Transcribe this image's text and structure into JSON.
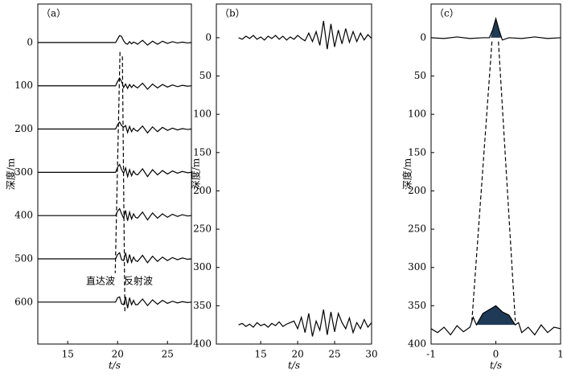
{
  "chart_data": [
    {
      "type": "line",
      "panel_label": "（a）",
      "xlabel": "t/s",
      "ylabel": "深度/m",
      "xlim": [
        12,
        27.4
      ],
      "xticks": [
        15,
        20,
        25
      ],
      "ylim": [
        -89,
        697
      ],
      "y_inverted": true,
      "yticks": [
        0,
        100,
        200,
        300,
        400,
        500,
        600
      ],
      "ytick_marks": false,
      "series": [
        {
          "color": "#000000",
          "x": [
            12,
            19.8,
            20,
            20.2,
            20.4,
            20.6,
            20.8,
            21,
            21.2,
            21.4,
            21.6,
            21.8,
            22,
            22.5,
            23,
            23.5,
            24,
            24.5,
            25,
            25.5,
            26,
            26.5,
            27,
            27.4
          ],
          "values": [
            0,
            0,
            -8,
            -16,
            -14,
            -4,
            2,
            4,
            -2,
            3,
            -1,
            1,
            4,
            -5,
            6,
            -3,
            4,
            -3,
            2,
            -2,
            1,
            -1,
            1,
            0
          ]
        },
        {
          "color": "#000000",
          "x": [
            12,
            19.8,
            20,
            20.2,
            20.4,
            20.6,
            20.8,
            21,
            21.2,
            21.4,
            21.6,
            21.8,
            22,
            22.5,
            23,
            23.5,
            24,
            24.5,
            25,
            25.5,
            26,
            26.5,
            27,
            27.4
          ],
          "values": [
            100,
            100,
            90,
            82,
            90,
            104,
            96,
            106,
            97,
            104,
            98,
            102,
            105,
            94,
            108,
            96,
            105,
            97,
            103,
            98,
            102,
            99,
            101,
            100
          ]
        },
        {
          "color": "#000000",
          "x": [
            12,
            19.8,
            20,
            20.2,
            20.4,
            20.6,
            20.8,
            21,
            21.2,
            21.4,
            21.6,
            21.8,
            22,
            22.5,
            23,
            23.5,
            24,
            24.5,
            25,
            25.5,
            26,
            26.5,
            27,
            27.4
          ],
          "values": [
            200,
            200,
            190,
            184,
            192,
            196,
            192,
            208,
            194,
            206,
            198,
            203,
            205,
            193,
            209,
            195,
            206,
            196,
            203,
            198,
            202,
            199,
            201,
            200
          ]
        },
        {
          "color": "#000000",
          "x": [
            12,
            19.8,
            20,
            20.2,
            20.4,
            20.6,
            20.8,
            21,
            21.2,
            21.4,
            21.6,
            21.8,
            22,
            22.5,
            23,
            23.5,
            24,
            24.5,
            25,
            25.5,
            26,
            26.5,
            27,
            27.4
          ],
          "values": [
            300,
            300,
            288,
            282,
            294,
            302,
            290,
            310,
            294,
            308,
            297,
            304,
            306,
            292,
            310,
            294,
            306,
            296,
            304,
            297,
            302,
            298,
            301,
            300
          ]
        },
        {
          "color": "#000000",
          "x": [
            12,
            19.8,
            20,
            20.2,
            20.4,
            20.6,
            20.8,
            21,
            21.2,
            21.4,
            21.6,
            21.8,
            22,
            22.5,
            23,
            23.5,
            24,
            24.5,
            25,
            25.5,
            26,
            26.5,
            27,
            27.4
          ],
          "values": [
            400,
            400,
            390,
            384,
            396,
            406,
            388,
            412,
            392,
            408,
            396,
            404,
            406,
            392,
            410,
            394,
            406,
            396,
            404,
            397,
            402,
            398,
            401,
            400
          ]
        },
        {
          "color": "#000000",
          "x": [
            12,
            19.8,
            20,
            20.2,
            20.4,
            20.6,
            20.8,
            21,
            21.2,
            21.4,
            21.6,
            21.8,
            22,
            22.5,
            23,
            23.5,
            24,
            24.5,
            25,
            25.5,
            26,
            26.5,
            27,
            27.4
          ],
          "values": [
            500,
            500,
            490,
            486,
            502,
            504,
            486,
            510,
            490,
            508,
            496,
            504,
            506,
            492,
            509,
            494,
            506,
            496,
            504,
            497,
            502,
            498,
            501,
            500
          ]
        },
        {
          "color": "#000000",
          "x": [
            12,
            19.8,
            20,
            20.2,
            20.4,
            20.6,
            20.8,
            21,
            21.2,
            21.4,
            21.6,
            21.8,
            22,
            22.5,
            23,
            23.5,
            24,
            24.5,
            25,
            25.5,
            26,
            26.5,
            27,
            27.4
          ],
          "values": [
            600,
            600,
            590,
            588,
            604,
            606,
            588,
            614,
            590,
            606,
            596,
            606,
            606,
            593,
            608,
            595,
            605,
            596,
            603,
            598,
            602,
            599,
            601,
            600
          ]
        }
      ],
      "guides": [
        {
          "x": [
            20.24,
            19.76
          ],
          "y": [
            22,
            533
          ]
        },
        {
          "x": [
            20.48,
            20.73
          ],
          "y": [
            32,
            626
          ]
        }
      ],
      "annotations": [
        "直达波",
        "反射波"
      ]
    },
    {
      "type": "line",
      "panel_label": "（b）",
      "xlabel": "t/s",
      "ylabel": "深度/m",
      "xlim": [
        9,
        30
      ],
      "xticks": [
        15,
        20,
        25,
        30
      ],
      "ylim": [
        -44,
        400
      ],
      "y_inverted": true,
      "yticks": [
        0,
        50,
        100,
        150,
        200,
        250,
        300,
        350,
        400
      ],
      "ytick_marks": true,
      "series": [
        {
          "color": "#000000",
          "x": [
            12,
            12.5,
            13,
            13.5,
            14,
            14.5,
            15,
            15.5,
            16,
            16.5,
            17,
            17.5,
            18,
            18.5,
            19,
            19.5,
            20,
            20.5,
            21,
            21.5,
            22,
            22.5,
            23,
            23.5,
            24,
            24.5,
            25,
            25.5,
            26,
            26.5,
            27,
            27.5,
            28,
            28.5,
            29,
            29.5,
            30
          ],
          "values": [
            0,
            2,
            -2,
            1,
            -3,
            2,
            -1,
            3,
            -2,
            1,
            -3,
            2,
            -2,
            3,
            -1,
            2,
            -3,
            1,
            4,
            -6,
            5,
            -8,
            10,
            -22,
            15,
            -18,
            12,
            -10,
            8,
            -12,
            6,
            -8,
            5,
            -6,
            3,
            -4,
            1
          ]
        },
        {
          "color": "#000000",
          "x": [
            12,
            12.5,
            13,
            13.5,
            14,
            14.5,
            15,
            15.5,
            16,
            16.5,
            17,
            17.5,
            18,
            18.5,
            19,
            19.5,
            20,
            20.5,
            21,
            21.5,
            22,
            22.5,
            23,
            23.5,
            24,
            24.5,
            25,
            25.5,
            26,
            26.5,
            27,
            27.5,
            28,
            28.5,
            29,
            29.5,
            30
          ],
          "values": [
            375,
            373,
            377,
            374,
            378,
            372,
            376,
            374,
            378,
            373,
            376,
            371,
            377,
            374,
            372,
            370,
            380,
            365,
            385,
            360,
            390,
            370,
            382,
            355,
            388,
            358,
            384,
            360,
            372,
            380,
            366,
            385,
            372,
            380,
            368,
            378,
            372
          ]
        }
      ]
    },
    {
      "type": "line",
      "panel_label": "（c）",
      "xlabel": "t/s",
      "ylabel": "深度/m",
      "xlim": [
        -1,
        1
      ],
      "xticks": [
        -1,
        0,
        1
      ],
      "ylim": [
        -44,
        400
      ],
      "y_inverted": true,
      "yticks": [
        0,
        50,
        100,
        150,
        200,
        250,
        300,
        350,
        400
      ],
      "ytick_marks": true,
      "series": [
        {
          "color": "#000000",
          "x": [
            -1,
            -0.8,
            -0.6,
            -0.4,
            -0.2,
            -0.1,
            -0.05,
            0,
            0.05,
            0.1,
            0.2,
            0.4,
            0.6,
            0.8,
            1
          ],
          "values": [
            0,
            1,
            -1,
            1,
            0,
            0,
            -10,
            -25,
            -10,
            3,
            0,
            1,
            -1,
            1,
            0
          ],
          "fill": {
            "range": [
              -0.08,
              0.08
            ],
            "base": 0,
            "color": "#1f3a56"
          }
        },
        {
          "color": "#000000",
          "x": [
            -1,
            -0.9,
            -0.8,
            -0.7,
            -0.6,
            -0.5,
            -0.4,
            -0.35,
            -0.3,
            -0.2,
            -0.1,
            0,
            0.1,
            0.2,
            0.3,
            0.35,
            0.4,
            0.5,
            0.6,
            0.7,
            0.8,
            0.9,
            1
          ],
          "values": [
            380,
            385,
            378,
            388,
            376,
            384,
            378,
            365,
            375,
            360,
            355,
            350,
            358,
            362,
            375,
            372,
            385,
            378,
            388,
            375,
            385,
            378,
            380
          ],
          "fill": {
            "range": [
              -0.35,
              0.3
            ],
            "base": 375,
            "color": "#1f3a56"
          }
        }
      ],
      "guides": [
        {
          "x": [
            -0.06,
            -0.37
          ],
          "y": [
            5,
            370
          ]
        },
        {
          "x": [
            0.04,
            0.3
          ],
          "y": [
            5,
            370
          ]
        }
      ]
    }
  ]
}
